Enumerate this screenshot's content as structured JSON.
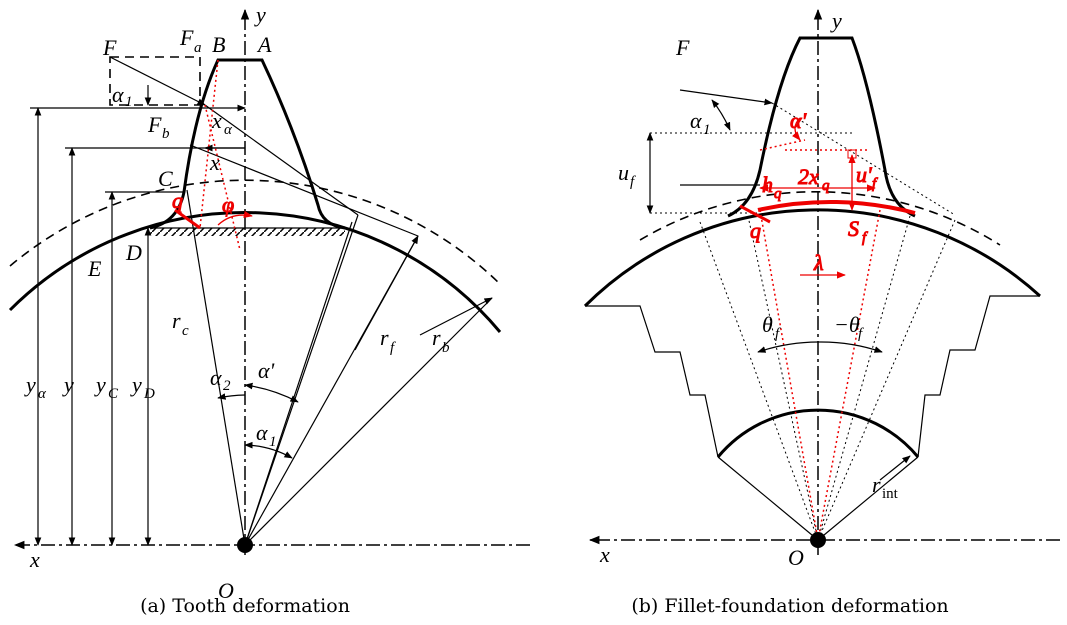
{
  "panel_a": {
    "caption": "(a) Tooth deformation",
    "labels": {
      "y_axis": "y",
      "x_axis": "x",
      "origin": "O",
      "F": "F",
      "Fa": {
        "main": "F",
        "sub": "a"
      },
      "B": "B",
      "A": "A",
      "alpha1_top": {
        "main": "α",
        "sub": "1"
      },
      "x_alpha": {
        "main": "x",
        "sub": "α"
      },
      "Fb": {
        "main": "F",
        "sub": "b"
      },
      "x": "x",
      "C": "C",
      "q": "q",
      "phi": "φ",
      "E": "E",
      "D": "D",
      "rc": {
        "main": "r",
        "sub": "c"
      },
      "alpha2": {
        "main": "α",
        "sub": "2"
      },
      "alpha_prime": "α'",
      "alpha1": {
        "main": "α",
        "sub": "1"
      },
      "rf": {
        "main": "r",
        "sub": "f"
      },
      "rb": {
        "main": "r",
        "sub": "b"
      },
      "y_alpha": {
        "main": "y",
        "sub": "α"
      },
      "y": "y",
      "yC": {
        "main": "y",
        "sub": "C"
      },
      "yD": {
        "main": "y",
        "sub": "D"
      }
    }
  },
  "panel_b": {
    "caption": "(b) Fillet-foundation deformation",
    "labels": {
      "y_axis": "y",
      "x_axis": "x",
      "origin": "O",
      "F": "F",
      "alpha1": {
        "main": "α",
        "sub": "1"
      },
      "alpha_prime": "α'",
      "uf": {
        "main": "u",
        "sub": "f"
      },
      "uf_prime": {
        "main": "u'",
        "sub": "f"
      },
      "hq": {
        "main": "h",
        "sub": "q"
      },
      "two_xq": {
        "main": "2x",
        "sub": "q"
      },
      "q": "q",
      "Sf": {
        "main": "S",
        "sub": "f"
      },
      "lambda": "λ",
      "theta_f": {
        "main": "θ",
        "sub": "f"
      },
      "neg_theta_f": {
        "main": "−θ",
        "sub": "f"
      },
      "r_int": {
        "main": "r",
        "sub": "int"
      }
    }
  }
}
